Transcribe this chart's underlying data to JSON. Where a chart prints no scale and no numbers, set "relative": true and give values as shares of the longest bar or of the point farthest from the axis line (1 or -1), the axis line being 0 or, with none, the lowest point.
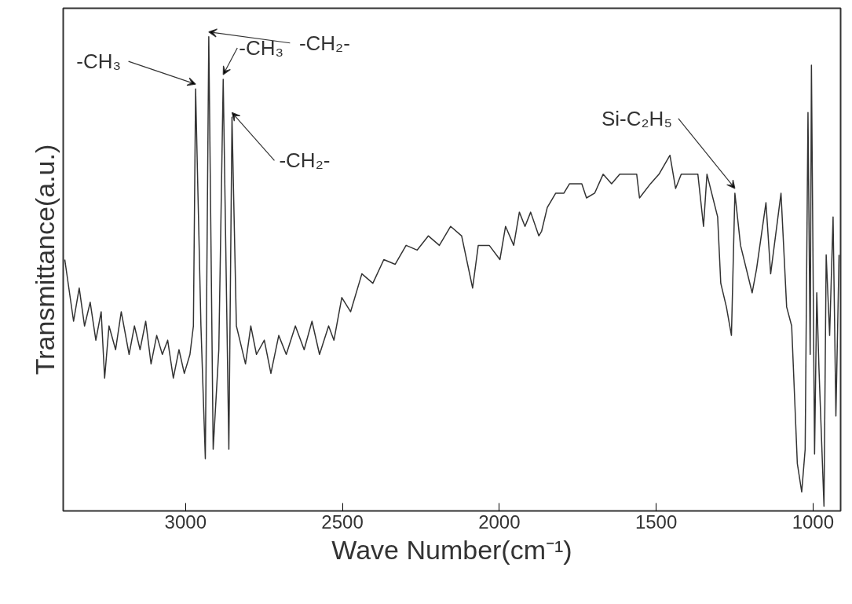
{
  "chart_data": {
    "type": "line",
    "xlabel": "Wave Number(cm⁻¹)",
    "ylabel": "Transmittance(a.u.)",
    "relative": true,
    "grid": false,
    "marker": "none",
    "line_style": "solid",
    "xlim": [
      3390,
      912
    ],
    "xticks": [
      3000,
      2500,
      2000,
      1500,
      1000
    ],
    "series": [
      {
        "color": "#333333",
        "x": [
          3385,
          3357,
          3339,
          3322,
          3304,
          3286,
          3269,
          3258,
          3244,
          3223,
          3205,
          3180,
          3163,
          3145,
          3127,
          3110,
          3092,
          3074,
          3057,
          3039,
          3021,
          3004,
          2986,
          2975,
          2968,
          2951,
          2937,
          2926,
          2912,
          2894,
          2880,
          2862,
          2852,
          2838,
          2827,
          2809,
          2792,
          2774,
          2749,
          2728,
          2703,
          2679,
          2650,
          2622,
          2597,
          2573,
          2544,
          2527,
          2502,
          2474,
          2438,
          2403,
          2368,
          2332,
          2297,
          2262,
          2226,
          2191,
          2155,
          2120,
          2085,
          2067,
          2032,
          1998,
          1980,
          1954,
          1936,
          1918,
          1900,
          1874,
          1865,
          1847,
          1820,
          1794,
          1776,
          1737,
          1722,
          1696,
          1669,
          1642,
          1616,
          1589,
          1562,
          1553,
          1518,
          1491,
          1456,
          1438,
          1420,
          1393,
          1367,
          1349,
          1338,
          1304,
          1294,
          1276,
          1260,
          1249,
          1231,
          1194,
          1180,
          1150,
          1135,
          1102,
          1084,
          1068,
          1050,
          1036,
          1025,
          1016,
          1009,
          1005,
          995,
          988,
          981,
          965,
          958,
          947,
          936,
          927,
          917
        ],
        "values": [
          0.53,
          0.4,
          0.47,
          0.39,
          0.44,
          0.36,
          0.42,
          0.28,
          0.39,
          0.34,
          0.42,
          0.33,
          0.39,
          0.34,
          0.4,
          0.31,
          0.37,
          0.33,
          0.36,
          0.28,
          0.34,
          0.29,
          0.33,
          0.39,
          0.89,
          0.39,
          0.11,
          1.0,
          0.13,
          0.34,
          0.91,
          0.13,
          0.83,
          0.39,
          0.36,
          0.31,
          0.39,
          0.33,
          0.36,
          0.29,
          0.37,
          0.33,
          0.39,
          0.34,
          0.4,
          0.33,
          0.39,
          0.36,
          0.45,
          0.42,
          0.5,
          0.48,
          0.53,
          0.52,
          0.56,
          0.55,
          0.58,
          0.56,
          0.6,
          0.58,
          0.47,
          0.56,
          0.56,
          0.53,
          0.6,
          0.56,
          0.63,
          0.6,
          0.63,
          0.58,
          0.59,
          0.64,
          0.67,
          0.67,
          0.69,
          0.69,
          0.66,
          0.67,
          0.71,
          0.69,
          0.71,
          0.71,
          0.71,
          0.66,
          0.69,
          0.71,
          0.75,
          0.68,
          0.71,
          0.71,
          0.71,
          0.6,
          0.71,
          0.62,
          0.48,
          0.43,
          0.37,
          0.67,
          0.56,
          0.46,
          0.51,
          0.65,
          0.5,
          0.67,
          0.43,
          0.39,
          0.1,
          0.04,
          0.13,
          0.84,
          0.33,
          0.94,
          0.12,
          0.46,
          0.3,
          0.01,
          0.54,
          0.37,
          0.62,
          0.2,
          0.54
        ]
      }
    ],
    "annotations": [
      {
        "text": "-CH₃",
        "x": 2968,
        "y": 0.89
      },
      {
        "text": "-CH₂-",
        "x": 2926,
        "y": 1.0
      },
      {
        "text": "-CH₃",
        "x": 2880,
        "y": 0.91
      },
      {
        "text": "-CH₂-",
        "x": 2852,
        "y": 0.83
      },
      {
        "text": "Si-C₂H₅",
        "x": 1249,
        "y": 0.67
      }
    ]
  }
}
